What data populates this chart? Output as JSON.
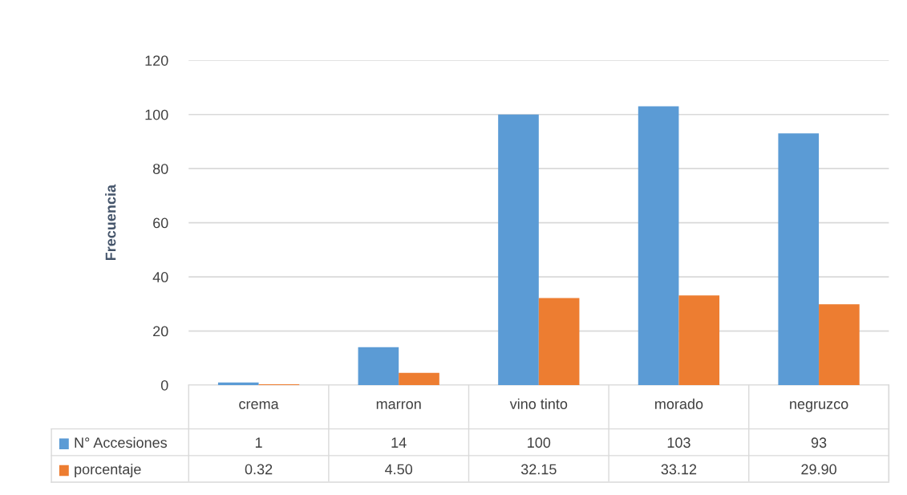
{
  "chart_data": {
    "type": "bar",
    "ylabel": "Frecuencia",
    "categories": [
      "crema",
      "marron",
      "vino tinto",
      "morado",
      "negruzco"
    ],
    "series": [
      {
        "name": "N° Accesiones",
        "color": "#5b9bd5",
        "values": [
          1,
          14,
          100,
          103,
          93
        ],
        "value_labels": [
          "1",
          "14",
          "100",
          "103",
          "93"
        ]
      },
      {
        "name": "porcentaje",
        "color": "#ed7d31",
        "values": [
          0.32,
          4.5,
          32.15,
          33.12,
          29.9
        ],
        "value_labels": [
          "0.32",
          "4.50",
          "32.15",
          "33.12",
          "29.90"
        ]
      }
    ],
    "ylim": [
      0,
      120
    ],
    "yticks": [
      0,
      20,
      40,
      60,
      80,
      100,
      120
    ],
    "grid": "y",
    "legend": "bottom left"
  }
}
